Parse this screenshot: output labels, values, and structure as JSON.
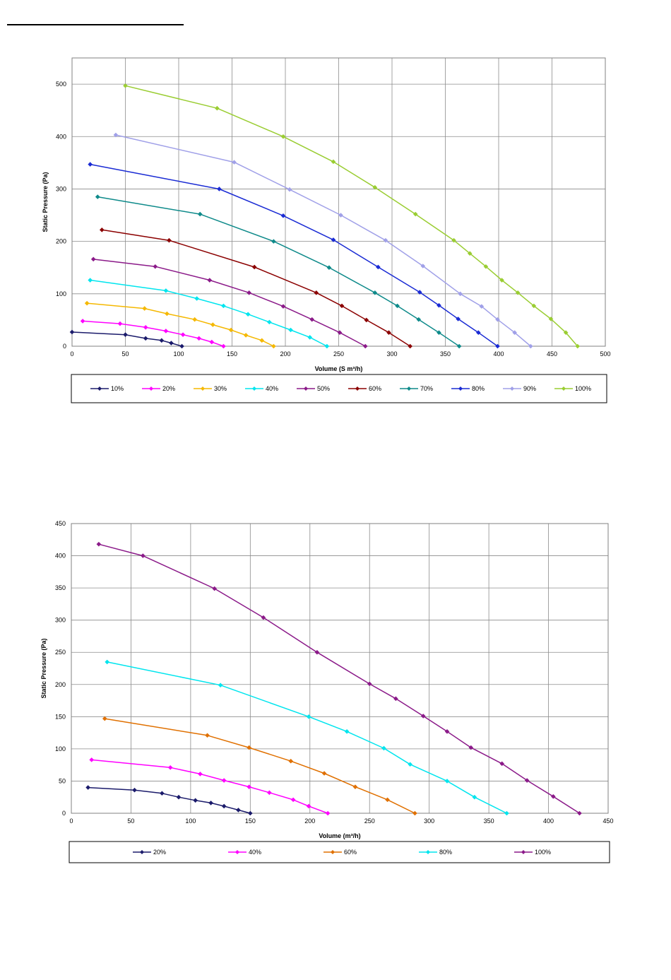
{
  "chart_data": [
    {
      "type": "line",
      "xlabel": "Volume  (S m³/h)",
      "ylabel": "Static Pressure (Pa)",
      "xlim": [
        0,
        500
      ],
      "ylim": [
        0,
        550
      ],
      "xticks": [
        0,
        50,
        100,
        150,
        200,
        250,
        300,
        350,
        400,
        450,
        500
      ],
      "yticks": [
        0,
        100,
        200,
        300,
        400,
        500
      ],
      "grid": true,
      "legend": "bottom",
      "series": [
        {
          "name": "10%",
          "color": "#1b1b6b",
          "points": [
            [
              0,
              27
            ],
            [
              50,
              22
            ],
            [
              69,
              15
            ],
            [
              84,
              11
            ],
            [
              93,
              6
            ],
            [
              103,
              0
            ]
          ]
        },
        {
          "name": "20%",
          "color": "#ff00ff",
          "points": [
            [
              10,
              48
            ],
            [
              45,
              43
            ],
            [
              69,
              36
            ],
            [
              88,
              29
            ],
            [
              104,
              22
            ],
            [
              119,
              15
            ],
            [
              131,
              8
            ],
            [
              142,
              0
            ]
          ]
        },
        {
          "name": "30%",
          "color": "#f5b800",
          "points": [
            [
              14,
              82
            ],
            [
              68,
              72
            ],
            [
              89,
              62
            ],
            [
              115,
              51
            ],
            [
              132,
              41
            ],
            [
              149,
              31
            ],
            [
              163,
              21
            ],
            [
              178,
              11
            ],
            [
              189,
              0
            ]
          ]
        },
        {
          "name": "40%",
          "color": "#00e5ee",
          "points": [
            [
              17,
              126
            ],
            [
              88,
              106
            ],
            [
              117,
              91
            ],
            [
              142,
              77
            ],
            [
              165,
              61
            ],
            [
              185,
              46
            ],
            [
              205,
              31
            ],
            [
              223,
              17
            ],
            [
              239,
              0
            ]
          ]
        },
        {
          "name": "50%",
          "color": "#8b1a89",
          "points": [
            [
              20,
              166
            ],
            [
              78,
              152
            ],
            [
              129,
              126
            ],
            [
              166,
              102
            ],
            [
              198,
              76
            ],
            [
              225,
              51
            ],
            [
              251,
              26
            ],
            [
              275,
              0
            ]
          ]
        },
        {
          "name": "60%",
          "color": "#8b0000",
          "points": [
            [
              28,
              222
            ],
            [
              91,
              202
            ],
            [
              171,
              151
            ],
            [
              229,
              102
            ],
            [
              253,
              77
            ],
            [
              276,
              50
            ],
            [
              297,
              26
            ],
            [
              317,
              0
            ]
          ]
        },
        {
          "name": "70%",
          "color": "#0e8a8a",
          "points": [
            [
              24,
              285
            ],
            [
              120,
              252
            ],
            [
              189,
              200
            ],
            [
              241,
              150
            ],
            [
              284,
              102
            ],
            [
              305,
              77
            ],
            [
              325,
              51
            ],
            [
              344,
              26
            ],
            [
              363,
              0
            ]
          ]
        },
        {
          "name": "80%",
          "color": "#1a2bd4",
          "points": [
            [
              17,
              347
            ],
            [
              138,
              300
            ],
            [
              198,
              249
            ],
            [
              245,
              203
            ],
            [
              287,
              151
            ],
            [
              326,
              103
            ],
            [
              344,
              78
            ],
            [
              362,
              52
            ],
            [
              381,
              26
            ],
            [
              399,
              0
            ]
          ]
        },
        {
          "name": "90%",
          "color": "#a0a0e8",
          "points": [
            [
              41,
              403
            ],
            [
              152,
              351
            ],
            [
              204,
              299
            ],
            [
              252,
              250
            ],
            [
              294,
              202
            ],
            [
              329,
              153
            ],
            [
              364,
              100
            ],
            [
              384,
              76
            ],
            [
              399,
              51
            ],
            [
              415,
              26
            ],
            [
              430,
              0
            ]
          ]
        },
        {
          "name": "100%",
          "color": "#9acd32",
          "points": [
            [
              50,
              497
            ],
            [
              136,
              454
            ],
            [
              198,
              400
            ],
            [
              245,
              352
            ],
            [
              284,
              303
            ],
            [
              322,
              252
            ],
            [
              358,
              202
            ],
            [
              373,
              177
            ],
            [
              388,
              152
            ],
            [
              403,
              126
            ],
            [
              418,
              102
            ],
            [
              433,
              77
            ],
            [
              449,
              52
            ],
            [
              463,
              26
            ],
            [
              474,
              0
            ]
          ]
        }
      ]
    },
    {
      "type": "line",
      "xlabel": "Volume  (m³/h)",
      "ylabel": "Static Pressure (Pa)",
      "xlim": [
        0,
        450
      ],
      "ylim": [
        0,
        450
      ],
      "xticks": [
        0,
        50,
        100,
        150,
        200,
        250,
        300,
        350,
        400,
        450
      ],
      "yticks": [
        0,
        50,
        100,
        150,
        200,
        250,
        300,
        350,
        400,
        450
      ],
      "grid": true,
      "legend": "bottom",
      "series": [
        {
          "name": "20%",
          "color": "#1b1b6b",
          "points": [
            [
              14,
              40
            ],
            [
              53,
              36
            ],
            [
              76,
              31
            ],
            [
              90,
              25
            ],
            [
              104,
              20
            ],
            [
              117,
              16
            ],
            [
              128,
              11
            ],
            [
              140,
              5
            ],
            [
              150,
              0
            ]
          ]
        },
        {
          "name": "40%",
          "color": "#ff00ff",
          "points": [
            [
              17,
              83
            ],
            [
              83,
              71
            ],
            [
              108,
              61
            ],
            [
              128,
              51
            ],
            [
              149,
              41
            ],
            [
              166,
              32
            ],
            [
              186,
              21
            ],
            [
              199,
              11
            ],
            [
              215,
              0
            ]
          ]
        },
        {
          "name": "60%",
          "color": "#e07000",
          "points": [
            [
              28,
              147
            ],
            [
              114,
              121
            ],
            [
              149,
              102
            ],
            [
              184,
              81
            ],
            [
              212,
              62
            ],
            [
              238,
              41
            ],
            [
              265,
              21
            ],
            [
              288,
              0
            ]
          ]
        },
        {
          "name": "80%",
          "color": "#00e5ee",
          "points": [
            [
              30,
              235
            ],
            [
              125,
              199
            ],
            [
              199,
              150
            ],
            [
              231,
              127
            ],
            [
              262,
              101
            ],
            [
              284,
              76
            ],
            [
              315,
              50
            ],
            [
              338,
              25
            ],
            [
              365,
              0
            ]
          ]
        },
        {
          "name": "100%",
          "color": "#8b1a89",
          "points": [
            [
              23,
              418
            ],
            [
              60,
              400
            ],
            [
              120,
              349
            ],
            [
              161,
              304
            ],
            [
              206,
              250
            ],
            [
              250,
              201
            ],
            [
              272,
              178
            ],
            [
              295,
              151
            ],
            [
              315,
              127
            ],
            [
              335,
              102
            ],
            [
              361,
              77
            ],
            [
              382,
              51
            ],
            [
              404,
              26
            ],
            [
              426,
              0
            ]
          ]
        }
      ]
    }
  ]
}
